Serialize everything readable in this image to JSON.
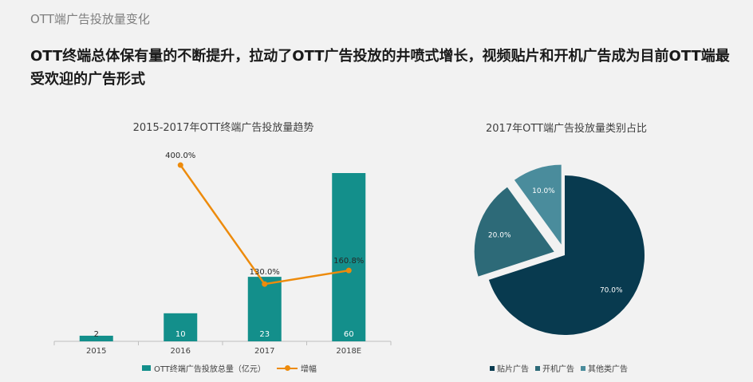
{
  "section_label": "OTT端广告投放量变化",
  "headline": "OTT终端总体保有量的不断提升，拉动了OTT广告投放的井喷式增长，视频贴片和开机广告成为目前OTT端最受欢迎的广告形式",
  "colors": {
    "bar": "#138f8b",
    "line": "#ed8b0c",
    "pie": [
      "#083a4f",
      "#2d6a78",
      "#4a8c9c"
    ]
  },
  "chart_data": [
    {
      "type": "bar",
      "title": "2015-2017年OTT终端广告投放量趋势",
      "categories": [
        "2015",
        "2016",
        "2017",
        "2018E"
      ],
      "series": [
        {
          "name": "OTT终端广告投放总量（亿元）",
          "type": "bar",
          "values": [
            2,
            10,
            23,
            60
          ],
          "labels": [
            "2",
            "10",
            "23",
            "60"
          ]
        },
        {
          "name": "增幅",
          "type": "line",
          "values": [
            null,
            400.0,
            130.0,
            160.8
          ],
          "labels": [
            "",
            "400.0%",
            "130.0%",
            "160.8%"
          ]
        }
      ],
      "ylim": [
        0,
        60
      ]
    },
    {
      "type": "pie",
      "title": "2017年OTT端广告投放量类别占比",
      "categories": [
        "贴片广告",
        "开机广告",
        "其他类广告"
      ],
      "values": [
        70.0,
        20.0,
        10.0
      ],
      "labels": [
        "70.0%",
        "20.0%",
        "10.0%"
      ]
    }
  ]
}
